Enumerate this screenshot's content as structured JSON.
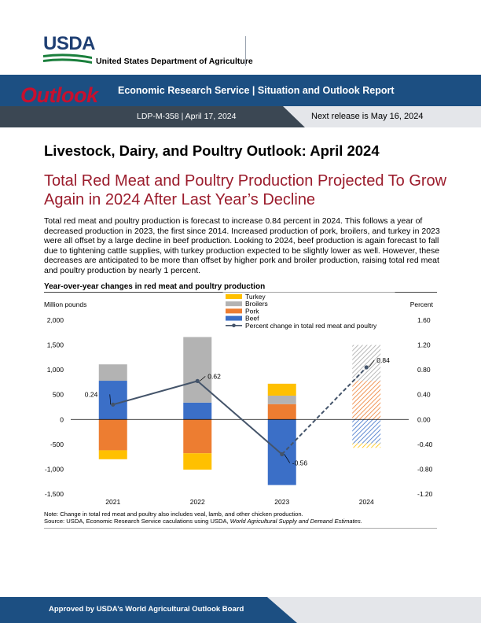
{
  "header": {
    "agency_short": "USDA",
    "agency_full": "United States Department of Agriculture",
    "outlook_word": "Outlook",
    "ers_title": "Economic Research Service  |  Situation and Outlook Report",
    "report_id": "LDP-M-358  |  April 17, 2024",
    "next_release": "Next release is May 16, 2024"
  },
  "main": {
    "title": "Livestock, Dairy, and Poultry Outlook: April 2024",
    "subtitle": "Total Red Meat and Poultry Production Projected To Grow Again in 2024 After Last Year’s Decline",
    "body": "Total red meat and poultry production is forecast to increase 0.84 percent in 2024. This follows a year of decreased production in 2023, the first since 2014. Increased production of pork, broilers, and turkey in 2023 were all offset by a large decline in beef production. Looking to 2024, beef production is again forecast to fall due to tightening cattle supplies, with turkey production expected to be slightly lower as well. However, these decreases are anticipated to be more than offset by higher pork and broiler production, raising total red meat and poultry production by nearly 1 percent."
  },
  "chart_data": {
    "type": "bar",
    "title": "Year-over-year changes in red meat and poultry production",
    "ylabel": "Million pounds",
    "y2label": "Percent",
    "categories": [
      "2021",
      "2022",
      "2023",
      "2024"
    ],
    "ylim": [
      -1500,
      2000
    ],
    "y_ticks": [
      -1500,
      -1000,
      -500,
      0,
      500,
      1000,
      1500,
      2000
    ],
    "y_tick_labels": [
      "-1,500",
      "-1,000",
      "-500",
      "0",
      "500",
      "1,000",
      "1,500",
      "2,000"
    ],
    "y2lim": [
      -1.2,
      1.6
    ],
    "y2_tick_labels": [
      "-1.20",
      "-0.80",
      "-0.40",
      "0.00",
      "0.40",
      "0.80",
      "1.20",
      "1.60"
    ],
    "series": [
      {
        "name": "Beef",
        "color": "#3b6fc7",
        "values": [
          780,
          340,
          -1320,
          -480
        ]
      },
      {
        "name": "Pork",
        "color": "#ed7d31",
        "values": [
          -620,
          -680,
          310,
          780
        ]
      },
      {
        "name": "Broilers",
        "color": "#b3b3b3",
        "values": [
          330,
          1320,
          170,
          720
        ]
      },
      {
        "name": "Turkey",
        "color": "#ffc000",
        "values": [
          -180,
          -330,
          240,
          -90
        ]
      }
    ],
    "line": {
      "name": "Percent change in total red meat and poultry",
      "color": "#44546a",
      "values": [
        0.24,
        0.62,
        -0.56,
        0.84
      ],
      "labels": [
        "0.24",
        "0.62",
        "-0.56",
        "0.84"
      ]
    },
    "legend_order": [
      "Turkey",
      "Broilers",
      "Pork",
      "Beef",
      "Percent change in total red meat and poultry"
    ],
    "legend_position": "top-center",
    "forecast_category": "2024"
  },
  "notes": {
    "note": "Note: Change in total red meat and poultry also includes veal, lamb, and other chicken production.",
    "source_prefix": "Source: USDA, Economic Research Service caculations using USDA, ",
    "source_italic": "World Agricultural Supply and Demand Estimates."
  },
  "footer": {
    "text": "Approved by USDA’s World Agricultural Outlook Board"
  }
}
